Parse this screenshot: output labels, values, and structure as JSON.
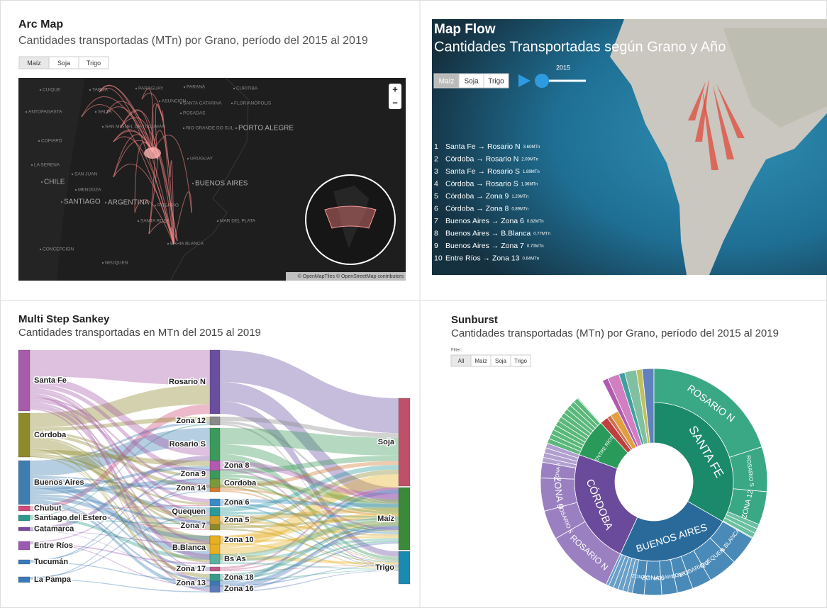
{
  "arc_map": {
    "title": "Arc Map",
    "subtitle": "Cantidades transportadas (MTn) por Grano, período del 2015 al 2019",
    "buttons": [
      "Maíz",
      "Soja",
      "Trigo"
    ],
    "zoom": [
      "+",
      "−"
    ],
    "attribution": "© OpenMapTiles © OpenStreetMap contributors",
    "places": [
      "CUIQUE",
      "TARIJA",
      "PARAGUAY",
      "PARANÁ",
      "CURITIBA",
      "ASUNCIÓN",
      "ANTOFAGASTA",
      "SALTA",
      "SANTA CATARINA",
      "FLORIANÓPOLIS",
      "POSADAS",
      "SAN MIGUEL DE TUCUMÁN",
      "RIO GRANDE DO SUL",
      "PORTO ALEGRE",
      "COPIAPÓ",
      "LA SERENA",
      "SAN JUAN",
      "URUGUAY",
      "CHILE",
      "MENDOZA",
      "BUENOS AIRES",
      "SANTIAGO",
      "ARGENTINA",
      "ROSARIO",
      "SANTA ROSA",
      "MAR DEL PLATA",
      "BAHIA BLANCA",
      "CONCEPCIÓN",
      "NEUQUEN"
    ]
  },
  "map_flow": {
    "title": "Map Flow",
    "subtitle": "Cantidades Transportadas según Grano y Año",
    "buttons": [
      "Maíz",
      "Soja",
      "Trigo"
    ],
    "year": 2015,
    "routes": [
      {
        "rank": 1,
        "route": "Santa Fe → Rosario N",
        "amount": "3.60MTn"
      },
      {
        "rank": 2,
        "route": "Córdoba → Rosario N",
        "amount": "2.09MTn"
      },
      {
        "rank": 3,
        "route": "Santa Fe → Rosario S",
        "amount": "1.89MTn"
      },
      {
        "rank": 4,
        "route": "Córdoba → Rosario S",
        "amount": "1.36MTn"
      },
      {
        "rank": 5,
        "route": "Córdoba → Zona 9",
        "amount": "1.20MTn"
      },
      {
        "rank": 6,
        "route": "Córdoba → Zona 8",
        "amount": "0.89MTn"
      },
      {
        "rank": 7,
        "route": "Buenos Aires → Zona 6",
        "amount": "0.82MTn"
      },
      {
        "rank": 8,
        "route": "Buenos Aires → B.Blanca",
        "amount": "0.77MTn"
      },
      {
        "rank": 9,
        "route": "Buenos Aires → Zona 7",
        "amount": "0.70MTn"
      },
      {
        "rank": 10,
        "route": "Entre Ríos → Zona 13",
        "amount": "0.64MTn"
      }
    ]
  },
  "sankey": {
    "title": "Multi Step Sankey",
    "subtitle": "Cantidades transportadas en MTn del 2015 al 2019",
    "origins": [
      "Santa Fe",
      "Córdoba",
      "Buenos Aires",
      "Chubut",
      "Santiago del Estero",
      "Catamarca",
      "Entre Ríos",
      "Tucumán",
      "La Pampa"
    ],
    "destinations_left": [
      "Rosario N",
      "Zona 12",
      "Rosario S",
      "Zona 9",
      "Zona 14",
      "Quequen",
      "Zona 7",
      "B.Blanca",
      "Zona 17",
      "Zona 13"
    ],
    "destinations_right": [
      "Zona 8",
      "Cordoba",
      "Zona 6",
      "Zona 5",
      "Zona 10",
      "Bs As",
      "Zona 18",
      "Zona 16"
    ],
    "grains": [
      "Soja",
      "Maíz",
      "Trigo"
    ]
  },
  "sunburst": {
    "title": "Sunburst",
    "subtitle": "Cantidades transportadas (MTn) por Grano, período del 2015 al 2019",
    "filter_label": "Filter:",
    "buttons": [
      "All",
      "Maíz",
      "Soja",
      "Trigo"
    ],
    "inner": [
      "SANTA FE",
      "BUENOS AIRES",
      "CÓRDOBA",
      "ENTRE RÍOS"
    ],
    "outer": [
      "ROSARIO N",
      "ROSARIO S",
      "ZONA 12",
      "B.BLANCA",
      "QUEQUEN",
      "ROSARIO S",
      "ZONA 5",
      "ROSARIO N",
      "ZONA 6",
      "ZONA 7",
      "ROSARIO N",
      "ROSARIO S",
      "ZONA 9",
      "ZONA 8"
    ]
  }
}
